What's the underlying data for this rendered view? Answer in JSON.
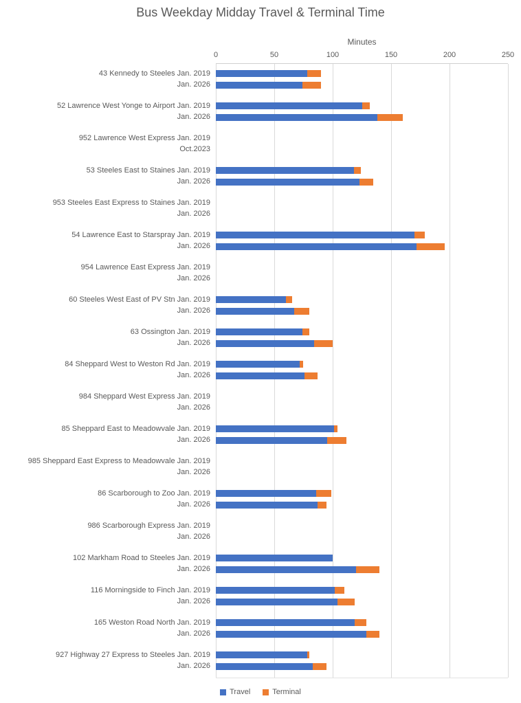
{
  "chart_data": {
    "type": "bar",
    "orientation": "horizontal",
    "stacked": true,
    "title": "Bus Weekday Midday Travel & Terminal Time",
    "value_axis": {
      "title": "Minutes",
      "position": "top",
      "min": 0,
      "max": 250,
      "ticks": [
        0,
        50,
        100,
        150,
        200,
        250
      ]
    },
    "grid": true,
    "legend_position": "bottom",
    "legend": [
      {
        "name": "Travel",
        "color": "#4472C4"
      },
      {
        "name": "Terminal",
        "color": "#ED7D31"
      }
    ],
    "units": "minutes",
    "groups": [
      {
        "route": "43 Kennedy to Steeles",
        "rows": [
          {
            "label": "43 Kennedy to Steeles Jan. 2019",
            "travel": 78,
            "terminal": 12
          },
          {
            "label": "Jan. 2026",
            "travel": 74,
            "terminal": 16
          }
        ]
      },
      {
        "route": "52 Lawrence West Yonge to Airport",
        "rows": [
          {
            "label": "52 Lawrence West Yonge to Airport Jan. 2019",
            "travel": 125,
            "terminal": 7
          },
          {
            "label": "Jan. 2026",
            "travel": 138,
            "terminal": 22
          }
        ]
      },
      {
        "route": "952 Lawrence West Express",
        "rows": [
          {
            "label": "952 Lawrence West Express Jan. 2019",
            "travel": 0,
            "terminal": 0
          },
          {
            "label": "Oct.2023",
            "travel": 0,
            "terminal": 0
          }
        ]
      },
      {
        "route": "53 Steeles East to Staines",
        "rows": [
          {
            "label": "53 Steeles East to Staines Jan. 2019",
            "travel": 118,
            "terminal": 6
          },
          {
            "label": "Jan. 2026",
            "travel": 123,
            "terminal": 12
          }
        ]
      },
      {
        "route": "953 Steeles East Express to Staines",
        "rows": [
          {
            "label": "953 Steeles East Express to Staines Jan. 2019",
            "travel": 0,
            "terminal": 0
          },
          {
            "label": "Jan. 2026",
            "travel": 0,
            "terminal": 0
          }
        ]
      },
      {
        "route": "54 Lawrence East to Starspray",
        "rows": [
          {
            "label": "54 Lawrence East to Starspray Jan. 2019",
            "travel": 170,
            "terminal": 9
          },
          {
            "label": "Jan. 2026",
            "travel": 172,
            "terminal": 24
          }
        ]
      },
      {
        "route": "954 Lawrence East Express",
        "rows": [
          {
            "label": "954 Lawrence East Express Jan. 2019",
            "travel": 0,
            "terminal": 0
          },
          {
            "label": "Jan. 2026",
            "travel": 0,
            "terminal": 0
          }
        ]
      },
      {
        "route": "60 Steeles West East of PV Stn",
        "rows": [
          {
            "label": "60 Steeles West East of PV Stn Jan. 2019",
            "travel": 60,
            "terminal": 5
          },
          {
            "label": "Jan. 2026",
            "travel": 67,
            "terminal": 13
          }
        ]
      },
      {
        "route": "63 Ossington",
        "rows": [
          {
            "label": "63 Ossington Jan. 2019",
            "travel": 74,
            "terminal": 6
          },
          {
            "label": "Jan. 2026",
            "travel": 84,
            "terminal": 16
          }
        ]
      },
      {
        "route": "84 Sheppard West to Weston Rd",
        "rows": [
          {
            "label": "84 Sheppard West to Weston Rd Jan. 2019",
            "travel": 72,
            "terminal": 3
          },
          {
            "label": "Jan. 2026",
            "travel": 76,
            "terminal": 11
          }
        ]
      },
      {
        "route": "984 Sheppard West Express",
        "rows": [
          {
            "label": "984 Sheppard West Express Jan. 2019",
            "travel": 0,
            "terminal": 0
          },
          {
            "label": "Jan. 2026",
            "travel": 0,
            "terminal": 0
          }
        ]
      },
      {
        "route": "85 Sheppard East to Meadowvale",
        "rows": [
          {
            "label": "85 Sheppard East to Meadowvale Jan. 2019",
            "travel": 101,
            "terminal": 3
          },
          {
            "label": "Jan. 2026",
            "travel": 95,
            "terminal": 17
          }
        ]
      },
      {
        "route": "985 Sheppard East Express to Meadowvale",
        "rows": [
          {
            "label": "985 Sheppard East Express to Meadowvale Jan. 2019",
            "travel": 0,
            "terminal": 0
          },
          {
            "label": "Jan. 2026",
            "travel": 0,
            "terminal": 0
          }
        ]
      },
      {
        "route": "86 Scarborough to Zoo",
        "rows": [
          {
            "label": "86 Scarborough to Zoo Jan. 2019",
            "travel": 86,
            "terminal": 13
          },
          {
            "label": "Jan. 2026",
            "travel": 87,
            "terminal": 8
          }
        ]
      },
      {
        "route": "986 Scarborough Express",
        "rows": [
          {
            "label": "986 Scarborough Express Jan. 2019",
            "travel": 0,
            "terminal": 0
          },
          {
            "label": "Jan. 2026",
            "travel": 0,
            "terminal": 0
          }
        ]
      },
      {
        "route": "102 Markham Road to Steeles",
        "rows": [
          {
            "label": "102 Markham Road to Steeles Jan. 2019",
            "travel": 100,
            "terminal": 0
          },
          {
            "label": "Jan. 2026",
            "travel": 120,
            "terminal": 20
          }
        ]
      },
      {
        "route": "116 Morningside to Finch",
        "rows": [
          {
            "label": "116 Morningside to Finch Jan. 2019",
            "travel": 102,
            "terminal": 8
          },
          {
            "label": "Jan. 2026",
            "travel": 104,
            "terminal": 15
          }
        ]
      },
      {
        "route": "165 Weston Road North",
        "rows": [
          {
            "label": "165 Weston Road North Jan. 2019",
            "travel": 119,
            "terminal": 10
          },
          {
            "label": "Jan. 2026",
            "travel": 129,
            "terminal": 11
          }
        ]
      },
      {
        "route": "927 Highway 27 Express to Steeles",
        "rows": [
          {
            "label": "927 Highway 27 Express to Steeles Jan. 2019",
            "travel": 78,
            "terminal": 2
          },
          {
            "label": "Jan. 2026",
            "travel": 83,
            "terminal": 12
          }
        ]
      }
    ]
  }
}
